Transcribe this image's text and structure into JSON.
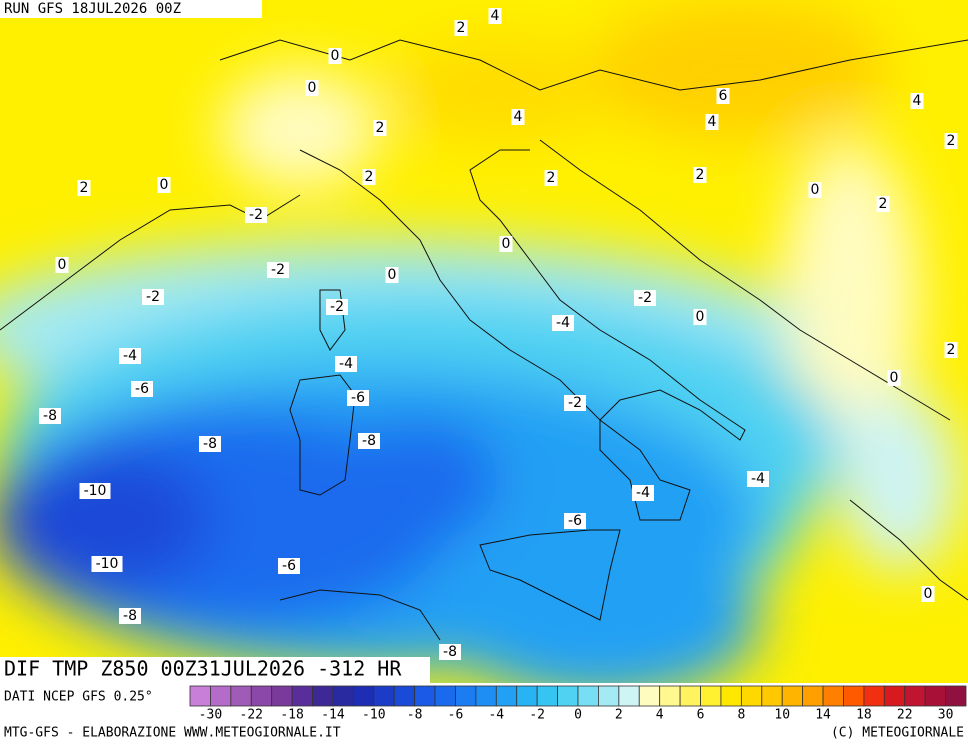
{
  "header": {
    "run": "RUN GFS 18JUL2026 00Z"
  },
  "map": {
    "title": "DIF TMP Z850 00Z31JUL2026 -312 HR",
    "source": "DATI NCEP GFS 0.25°",
    "contour_labels": [
      4,
      2,
      0,
      0,
      2,
      4,
      6,
      4,
      4,
      2,
      2,
      0,
      2,
      2,
      2,
      0,
      2,
      -2,
      0,
      0,
      -2,
      0,
      -2,
      -2,
      -2,
      0,
      -4,
      -4,
      -4,
      2,
      0,
      -6,
      -6,
      -8,
      -2,
      -8,
      -8,
      -4,
      -10,
      -4,
      -6,
      -10,
      -6,
      0,
      -8,
      -8
    ]
  },
  "legend": {
    "ticks": [
      -30,
      -22,
      -18,
      -14,
      -10,
      -8,
      -6,
      -4,
      -2,
      0,
      2,
      4,
      6,
      8,
      10,
      14,
      18,
      22,
      30
    ],
    "colors": [
      "#c87fd8",
      "#b46cc8",
      "#a05ab8",
      "#8c48a8",
      "#7a3a9c",
      "#5a2e9a",
      "#3e2896",
      "#2a2aa0",
      "#1e2eb4",
      "#1c3cc8",
      "#1a4ad8",
      "#1a5ae6",
      "#1a6aee",
      "#1c7cf2",
      "#1e8ef4",
      "#22a0f4",
      "#28b4f4",
      "#36c4f2",
      "#50d2f2",
      "#78def4",
      "#a4eaf4",
      "#cef4f4",
      "#fffcc0",
      "#fff890",
      "#fff460",
      "#fff030",
      "#ffe800",
      "#ffd800",
      "#ffc800",
      "#ffb400",
      "#ffa000",
      "#ff8000",
      "#ff5a00",
      "#f03010",
      "#d81a20",
      "#c01430",
      "#a81038",
      "#901040"
    ]
  },
  "footer": {
    "left": "MTG-GFS - ELABORAZIONE WWW.METEOGIORNALE.IT",
    "right": "(C) METEOGIORNALE"
  }
}
